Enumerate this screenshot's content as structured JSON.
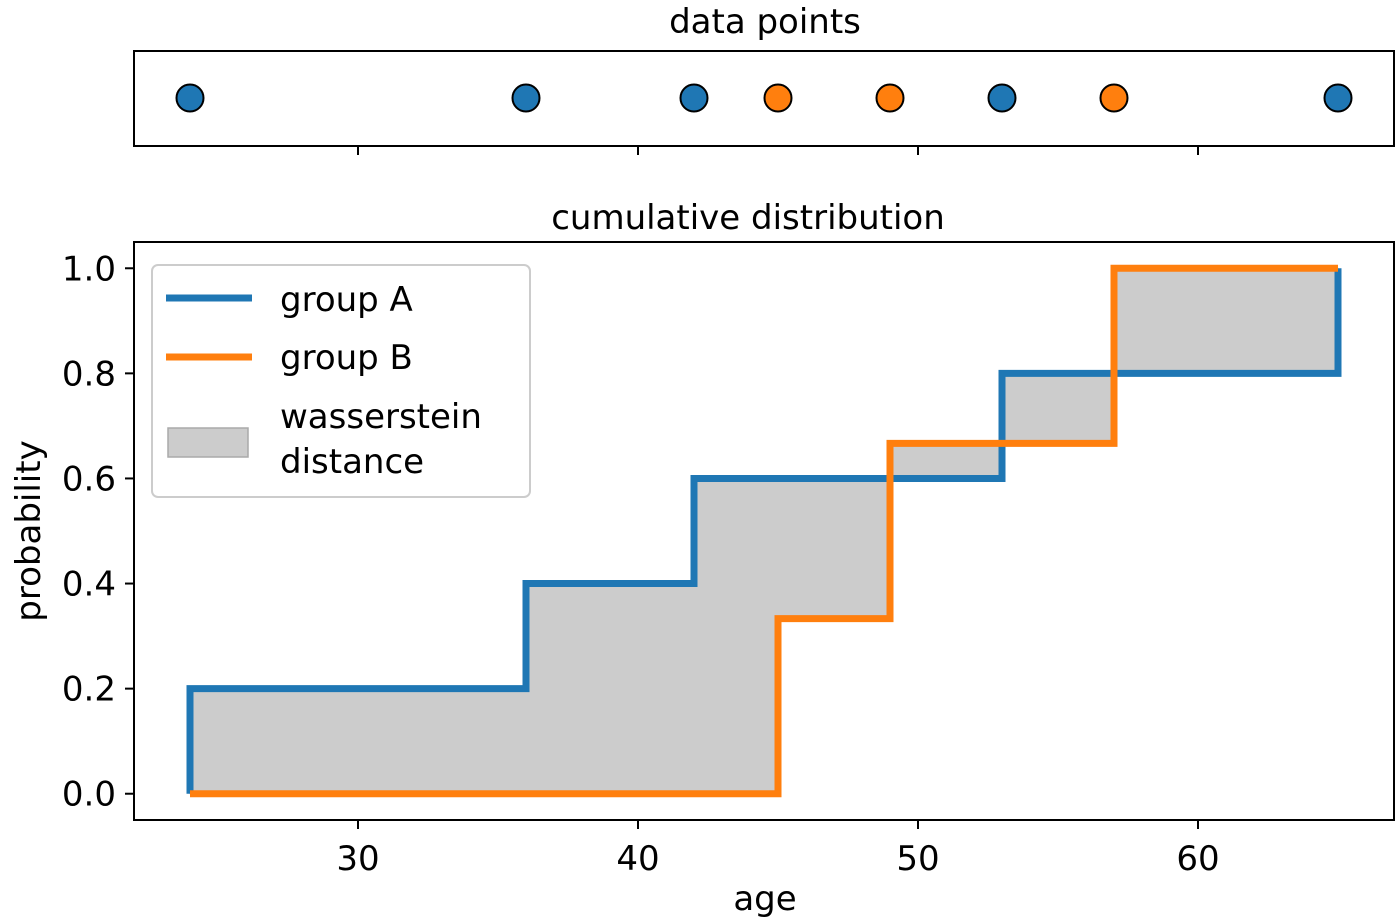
{
  "chart_data": [
    {
      "type": "scatter",
      "title": "data points",
      "xlabel": "",
      "ylabel": "",
      "xlim": [
        22,
        67
      ],
      "points": [
        {
          "x": 24,
          "group": "A"
        },
        {
          "x": 36,
          "group": "A"
        },
        {
          "x": 42,
          "group": "A"
        },
        {
          "x": 45,
          "group": "B"
        },
        {
          "x": 49,
          "group": "B"
        },
        {
          "x": 53,
          "group": "A"
        },
        {
          "x": 57,
          "group": "B"
        },
        {
          "x": 65,
          "group": "A"
        }
      ],
      "xticks": [
        30,
        40,
        50,
        60
      ],
      "show_tick_labels": false
    },
    {
      "type": "line",
      "step": "post",
      "title": "cumulative distribution",
      "xlabel": "age",
      "ylabel": "probability",
      "xlim": [
        22,
        67
      ],
      "ylim": [
        -0.05,
        1.05
      ],
      "xticks": [
        30,
        40,
        50,
        60
      ],
      "yticks": [
        0.0,
        0.2,
        0.4,
        0.6,
        0.8,
        1.0
      ],
      "ytick_labels": [
        "0.0",
        "0.2",
        "0.4",
        "0.6",
        "0.8",
        "1.0"
      ],
      "grid": false,
      "legend_position": "upper-left",
      "series": [
        {
          "name": "group A",
          "key": "A",
          "color": "#1f77b4",
          "x": [
            24,
            36,
            42,
            53,
            65
          ],
          "y": [
            0.2,
            0.4,
            0.6,
            0.8,
            1.0
          ]
        },
        {
          "name": "group B",
          "key": "B",
          "color": "#ff7f0e",
          "x": [
            24,
            45,
            49,
            57,
            65
          ],
          "y": [
            0.0,
            0.3333,
            0.6667,
            1.0,
            1.0
          ]
        }
      ],
      "fill": {
        "name": "wasserstein distance",
        "label_lines": [
          "wasserstein",
          "distance"
        ],
        "color": "#cccccc",
        "between": [
          "A",
          "B"
        ]
      }
    }
  ],
  "colors": {
    "group_A": "#1f77b4",
    "group_B": "#ff7f0e",
    "fill": "#cccccc"
  }
}
